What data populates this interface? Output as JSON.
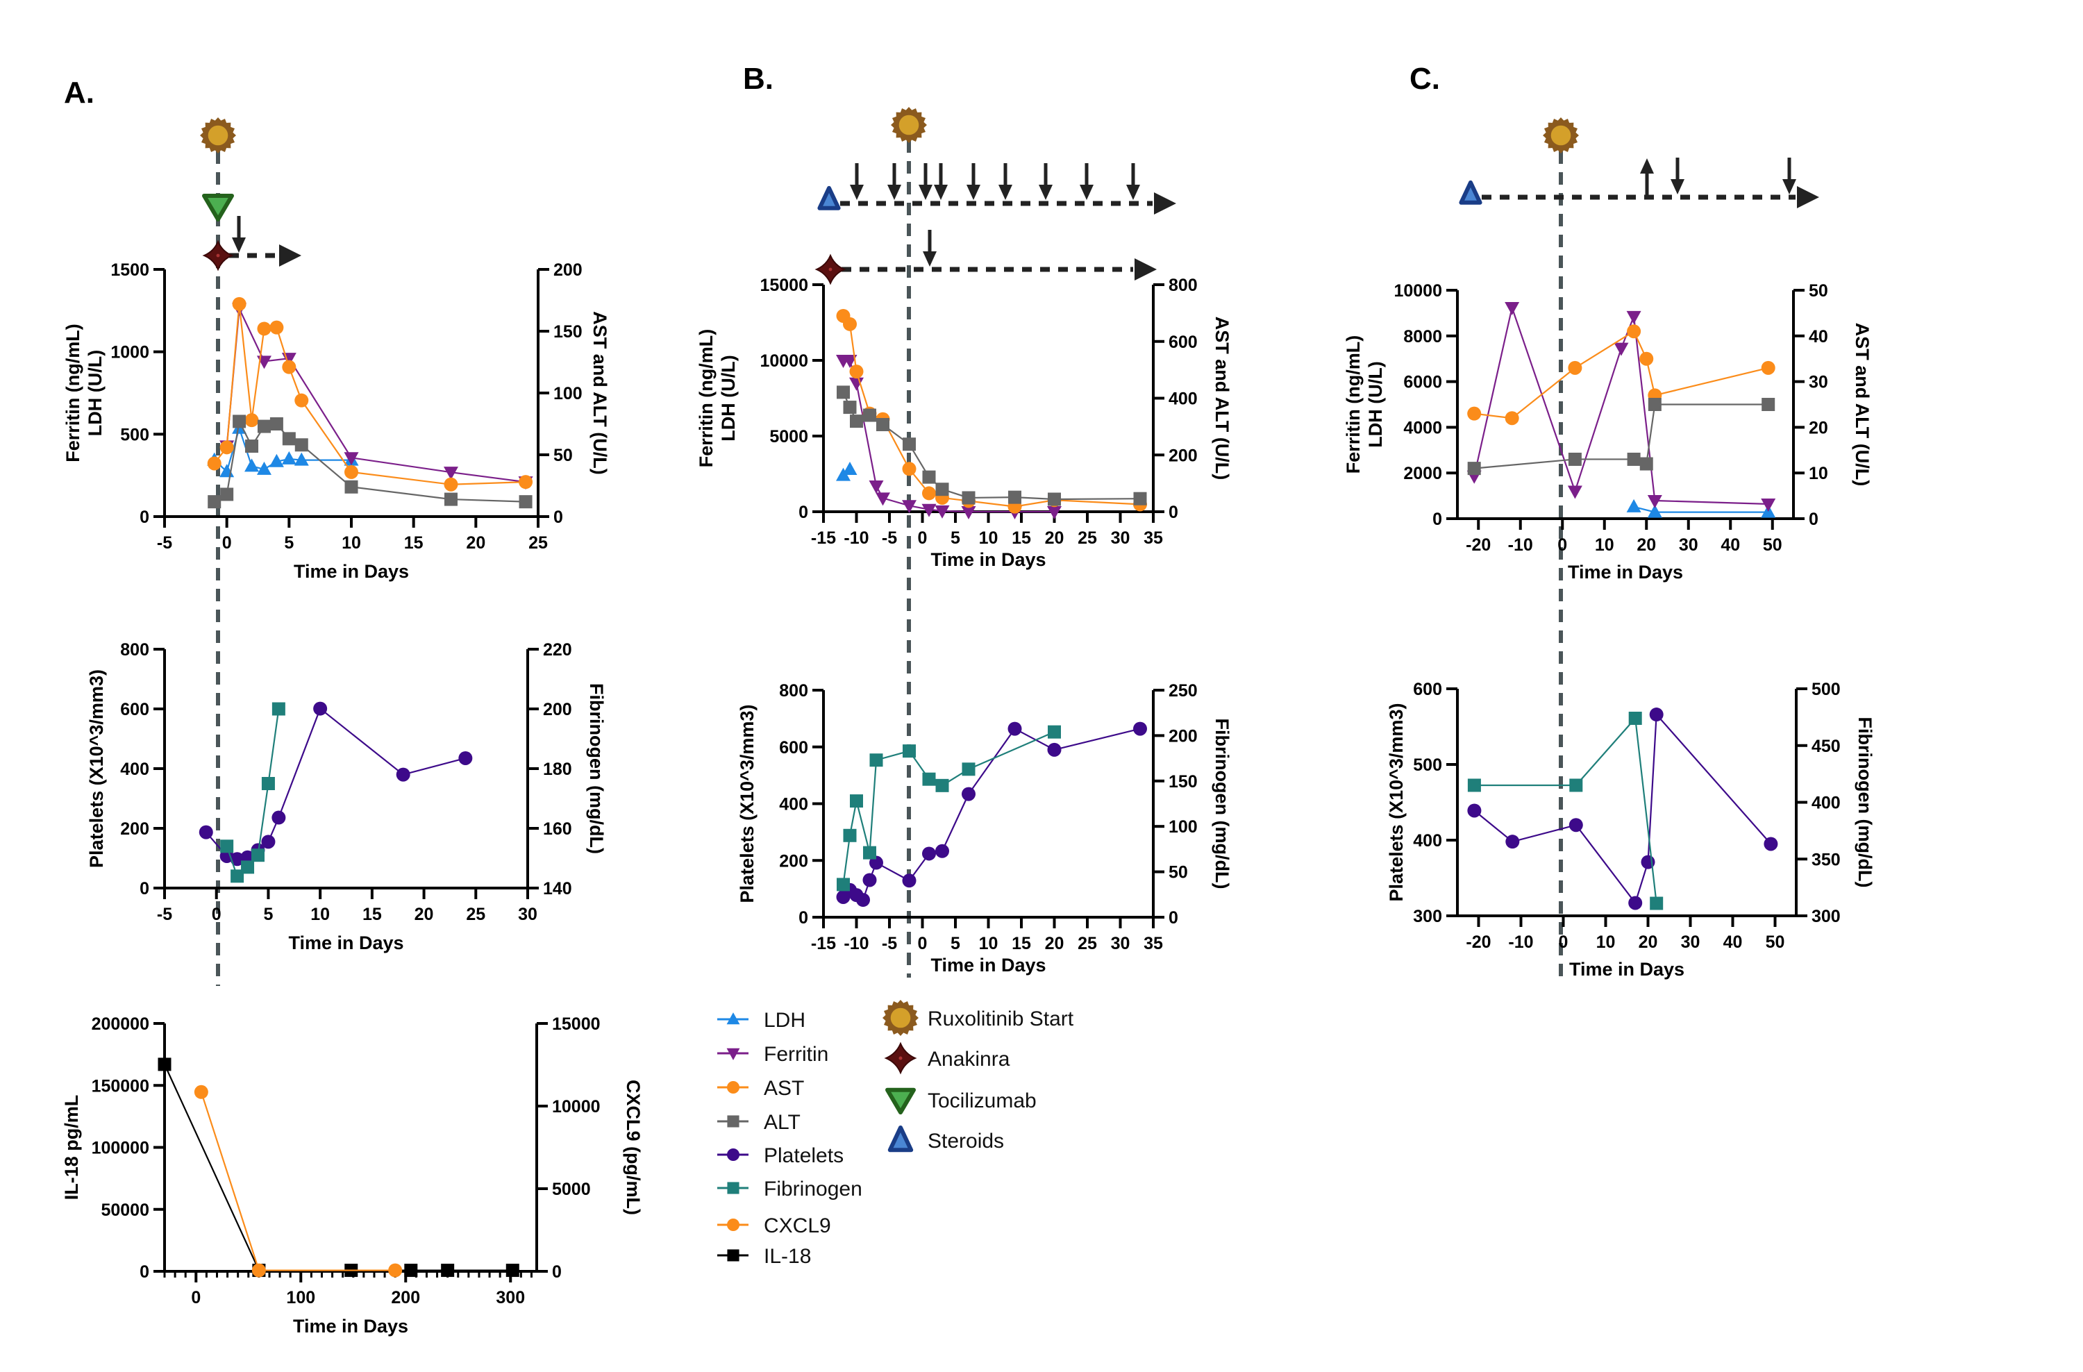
{
  "panels": [
    {
      "id": "A",
      "label": "A."
    },
    {
      "id": "B",
      "label": "B."
    },
    {
      "id": "C",
      "label": "C."
    }
  ],
  "series_styles": {
    "LDH": {
      "color": "#1e88e5",
      "marker": "triangle-up"
    },
    "Ferritin": {
      "color": "#7b1f8a",
      "marker": "triangle-down"
    },
    "AST": {
      "color": "#fb8c1a",
      "marker": "circle"
    },
    "ALT": {
      "color": "#666666",
      "marker": "square"
    },
    "Platelets": {
      "color": "#3d0a8a",
      "marker": "circle"
    },
    "Fibrinogen": {
      "color": "#1f7f7a",
      "marker": "square"
    },
    "CXCL9": {
      "color": "#fb8c1a",
      "marker": "circle"
    },
    "IL-18": {
      "color": "#000000",
      "marker": "square"
    }
  },
  "legend": {
    "series": [
      "LDH",
      "Ferritin",
      "AST",
      "ALT",
      "Platelets",
      "Fibrinogen",
      "CXCL9",
      "IL-18"
    ],
    "treatments": [
      {
        "name": "Ruxolitinib Start",
        "icon": "ruxolitinib-sun-icon",
        "color": "#d4a02a",
        "outline": "#8b5a1e"
      },
      {
        "name": "Anakinra",
        "icon": "anakinra-star-icon",
        "color": "#5a1010",
        "outline": "#3a0808"
      },
      {
        "name": "Tocilizumab",
        "icon": "tocilizumab-triangle-icon",
        "color": "#4caf50",
        "outline": "#24621c"
      },
      {
        "name": "Steroids",
        "icon": "steroids-triangle-icon",
        "color": "#4a86d4",
        "outline": "#1a3d87"
      }
    ]
  },
  "timelines": {
    "A": {
      "ruxolitinib_start_day": -1,
      "tocilizumab_day": -1,
      "anakinra": {
        "start_day": -1,
        "dose_changes": [
          {
            "direction": "down"
          }
        ]
      }
    },
    "B": {
      "ruxolitinib_start_day": -1,
      "steroids": {
        "dose_changes": [
          {
            "direction": "down"
          },
          {
            "direction": "down"
          },
          {
            "direction": "down"
          },
          {
            "direction": "down"
          },
          {
            "direction": "down"
          },
          {
            "direction": "down"
          },
          {
            "direction": "down"
          },
          {
            "direction": "down"
          },
          {
            "direction": "down"
          }
        ]
      },
      "anakinra": {
        "dose_changes": [
          {
            "direction": "down"
          }
        ]
      }
    },
    "C": {
      "ruxolitinib_start_day": 0,
      "steroids": {
        "dose_changes": [
          {
            "direction": "up"
          },
          {
            "direction": "down"
          },
          {
            "direction": "down"
          }
        ]
      }
    }
  },
  "chart_data": [
    {
      "id": "A-top",
      "panel": "A",
      "type": "line",
      "xlabel": "Time in Days",
      "ylabel": "Ferritin (ng/mL)\nLDH (U/L)",
      "y2label": "AST and ALT (U/L)",
      "xlim": [
        -5,
        25
      ],
      "xticks": [
        -5,
        0,
        5,
        10,
        15,
        20,
        25
      ],
      "xtick_labels": [
        "-5",
        "0",
        "5",
        "10",
        "15",
        "20",
        "25"
      ],
      "ylim": [
        0,
        1500
      ],
      "yticks": [
        0,
        500,
        1000,
        1500
      ],
      "ytick_labels": [
        "0",
        "500",
        "1000",
        "1500"
      ],
      "y2lim": [
        0,
        200
      ],
      "y2ticks": [
        0,
        50,
        100,
        150,
        200
      ],
      "y2tick_labels": [
        "0",
        "50",
        "100",
        "150",
        "200"
      ],
      "grid": false,
      "series": [
        {
          "name": "LDH",
          "axis": "left",
          "x": [
            -1,
            0,
            1,
            2,
            3,
            4,
            5,
            6,
            10
          ],
          "y": [
            343,
            273,
            536,
            306,
            287,
            334,
            350,
            343,
            343
          ]
        },
        {
          "name": "Ferritin",
          "axis": "left",
          "x": [
            0,
            1,
            3,
            5,
            10,
            18,
            24
          ],
          "y": [
            428,
            1262,
            942,
            960,
            357,
            269,
            210
          ]
        },
        {
          "name": "AST",
          "axis": "right",
          "x": [
            -1,
            0,
            1,
            2,
            3,
            4,
            5,
            6,
            10,
            18,
            24
          ],
          "y": [
            43,
            56,
            172,
            78,
            152,
            153,
            121,
            94,
            36,
            26,
            28
          ]
        },
        {
          "name": "ALT",
          "axis": "right",
          "x": [
            -1,
            0,
            1,
            2,
            3,
            4,
            5,
            6,
            10,
            18,
            24
          ],
          "y": [
            12,
            18,
            77,
            57,
            73,
            75,
            63,
            58,
            24,
            14,
            12
          ]
        }
      ]
    },
    {
      "id": "A-mid",
      "panel": "A",
      "type": "line",
      "xlabel": "Time in Days",
      "ylabel": "Platelets (X10^3/mm3)",
      "y2label": "Fibrinogen (mg/dL)",
      "xlim": [
        -5,
        30
      ],
      "xticks": [
        -5,
        0,
        5,
        10,
        15,
        20,
        25,
        30
      ],
      "xtick_labels": [
        "-5",
        "0",
        "5",
        "10",
        "15",
        "20",
        "25",
        "30"
      ],
      "ylim": [
        0,
        800
      ],
      "yticks": [
        0,
        200,
        400,
        600,
        800
      ],
      "ytick_labels": [
        "0",
        "200",
        "400",
        "600",
        "800"
      ],
      "y2lim": [
        140,
        220
      ],
      "y2ticks": [
        140,
        160,
        180,
        200,
        220
      ],
      "y2tick_labels": [
        "140",
        "160",
        "180",
        "200",
        "220"
      ],
      "grid": false,
      "series": [
        {
          "name": "Platelets",
          "axis": "left",
          "x": [
            -1,
            1,
            2,
            3,
            4,
            5,
            6,
            10,
            18,
            24
          ],
          "y": [
            187,
            107,
            97,
            103,
            127,
            155,
            236,
            601,
            380,
            435
          ]
        },
        {
          "name": "Fibrinogen",
          "axis": "right",
          "x": [
            1,
            2,
            3,
            4,
            5,
            6
          ],
          "y": [
            154,
            144,
            147,
            151,
            175,
            200
          ]
        }
      ]
    },
    {
      "id": "A-bottom",
      "panel": "A",
      "type": "line",
      "xlabel": "Time in Days",
      "ylabel": "IL-18 pg/mL",
      "y2label": "CXCL9 (pg/mL)",
      "xlim": [
        -30,
        325
      ],
      "xticks": [
        0,
        100,
        200,
        300
      ],
      "xtick_labels": [
        "0",
        "100",
        "200",
        "300"
      ],
      "xminor": 10,
      "ylim": [
        0,
        200000
      ],
      "yticks": [
        0,
        50000,
        100000,
        150000,
        200000
      ],
      "ytick_labels": [
        "0",
        "50000",
        "100000",
        "150000",
        "200000"
      ],
      "y2lim": [
        0,
        15000
      ],
      "y2ticks": [
        0,
        5000,
        10000,
        15000
      ],
      "y2tick_labels": [
        "0",
        "5000",
        "10000",
        "15000"
      ],
      "grid": false,
      "series": [
        {
          "name": "IL-18",
          "axis": "left",
          "x": [
            -30,
            60,
            148,
            205,
            240,
            302
          ],
          "y": [
            167000,
            800,
            800,
            800,
            800,
            800
          ]
        },
        {
          "name": "CXCL9",
          "axis": "right",
          "x": [
            5,
            60,
            190
          ],
          "y": [
            10850,
            60,
            60
          ]
        }
      ]
    },
    {
      "id": "B-top",
      "panel": "B",
      "type": "line",
      "xlabel": "Time in Days",
      "ylabel": "Ferritin (ng/mL)\nLDH (U/L)",
      "y2label": "AST and ALT (U/L)",
      "xlim": [
        -15,
        35
      ],
      "xticks": [
        -15,
        -10,
        -5,
        0,
        5,
        10,
        15,
        20,
        25,
        30,
        35
      ],
      "xtick_labels": [
        "-15",
        "-10",
        "-5",
        "0",
        "5",
        "10",
        "15",
        "20",
        "25",
        "30",
        "35"
      ],
      "ylim": [
        0,
        15000
      ],
      "yticks": [
        0,
        5000,
        10000,
        15000
      ],
      "ytick_labels": [
        "0",
        "5000",
        "10000",
        "15000"
      ],
      "y2lim": [
        0,
        800
      ],
      "y2ticks": [
        0,
        200,
        400,
        600,
        800
      ],
      "y2tick_labels": [
        "0",
        "200",
        "400",
        "600",
        "800"
      ],
      "grid": false,
      "series": [
        {
          "name": "LDH",
          "axis": "left",
          "x": [
            -12,
            -11
          ],
          "y": [
            2400,
            2800
          ]
        },
        {
          "name": "Ferritin",
          "axis": "left",
          "x": [
            -12,
            -11,
            -10,
            -7,
            -6,
            -2,
            1,
            3,
            7,
            14,
            20
          ],
          "y": [
            10000,
            10000,
            8500,
            1700,
            900,
            400,
            150,
            50,
            0,
            0,
            0
          ]
        },
        {
          "name": "AST",
          "axis": "right",
          "x": [
            -12,
            -11,
            -10,
            -8,
            -6,
            -2,
            1,
            3,
            7,
            14,
            20,
            33
          ],
          "y": [
            690,
            661,
            494,
            346,
            326,
            151,
            65,
            49,
            38,
            18,
            41,
            26
          ]
        },
        {
          "name": "ALT",
          "axis": "right",
          "x": [
            -12,
            -11,
            -10,
            -8,
            -6,
            -2,
            1,
            3,
            7,
            14,
            20,
            33
          ],
          "y": [
            421,
            368,
            319,
            340,
            307,
            238,
            122,
            79,
            49,
            51,
            44,
            46
          ]
        }
      ]
    },
    {
      "id": "B-bottom",
      "panel": "B",
      "type": "line",
      "xlabel": "Time in Days",
      "ylabel": "Platelets (X10^3/mm3)",
      "y2label": "Fibrinogen (mg/dL)",
      "xlim": [
        -15,
        35
      ],
      "xticks": [
        -15,
        -10,
        -5,
        0,
        5,
        10,
        15,
        20,
        25,
        30,
        35
      ],
      "xtick_labels": [
        "-15",
        "-10",
        "-5",
        "0",
        "5",
        "10",
        "15",
        "20",
        "25",
        "30",
        "35"
      ],
      "ylim": [
        0,
        800
      ],
      "yticks": [
        0,
        200,
        400,
        600,
        800
      ],
      "ytick_labels": [
        "0",
        "200",
        "400",
        "600",
        "800"
      ],
      "y2lim": [
        0,
        250
      ],
      "y2ticks": [
        0,
        50,
        100,
        150,
        200,
        250
      ],
      "y2tick_labels": [
        "0",
        "50",
        "100",
        "150",
        "200",
        "250"
      ],
      "grid": false,
      "series": [
        {
          "name": "Platelets",
          "axis": "left",
          "x": [
            -12,
            -11,
            -10,
            -9,
            -8,
            -7,
            -2,
            1,
            3,
            7,
            14,
            20,
            33
          ],
          "y": [
            71,
            96,
            78,
            61,
            131,
            192,
            129,
            224,
            233,
            434,
            664,
            590,
            664
          ]
        },
        {
          "name": "Fibrinogen",
          "axis": "right",
          "x": [
            -12,
            -11,
            -10,
            -8,
            -7,
            -2,
            1,
            3,
            7,
            20
          ],
          "y": [
            36,
            90,
            128,
            71,
            173,
            183,
            152,
            145,
            163,
            204
          ]
        }
      ]
    },
    {
      "id": "C-top",
      "panel": "C",
      "type": "line",
      "xlabel": "Time in Days",
      "ylabel": "Ferritin (ng/mL)\nLDH (U/L)",
      "y2label": "AST and ALT (U/L)",
      "xlim": [
        -25,
        55
      ],
      "xticks": [
        -20,
        -10,
        0,
        10,
        20,
        30,
        40,
        50
      ],
      "xtick_labels": [
        "-20",
        "-10",
        "0",
        "10",
        "20",
        "30",
        "40",
        "50"
      ],
      "ylim": [
        0,
        10000
      ],
      "yticks": [
        0,
        2000,
        4000,
        6000,
        8000,
        10000
      ],
      "ytick_labels": [
        "0",
        "2000",
        "4000",
        "6000",
        "8000",
        "10000"
      ],
      "y2lim": [
        0,
        50
      ],
      "y2ticks": [
        0,
        10,
        20,
        30,
        40,
        50
      ],
      "y2tick_labels": [
        "0",
        "10",
        "20",
        "30",
        "40",
        "50"
      ],
      "grid": false,
      "series": [
        {
          "name": "LDH",
          "axis": "left",
          "x": [
            17,
            22,
            49
          ],
          "y": [
            520,
            285,
            285
          ]
        },
        {
          "name": "Ferritin",
          "axis": "left",
          "x": [
            -21,
            -12,
            3,
            14,
            17,
            22,
            49
          ],
          "y": [
            1860,
            9240,
            1200,
            7460,
            8850,
            790,
            640
          ]
        },
        {
          "name": "AST",
          "axis": "right",
          "x": [
            -21,
            -12,
            3,
            17,
            20,
            22,
            49
          ],
          "y": [
            23,
            22,
            33,
            41,
            35,
            27,
            33
          ]
        },
        {
          "name": "ALT",
          "axis": "right",
          "x": [
            -21,
            3,
            17,
            20,
            22,
            49
          ],
          "y": [
            11,
            13,
            13,
            12,
            25,
            25
          ]
        }
      ]
    },
    {
      "id": "C-bottom",
      "panel": "C",
      "type": "line",
      "xlabel": "Time in Days",
      "ylabel": "Platelets (X10^3/mm3)",
      "y2label": "Fibrinogen (mg/dL)",
      "xlim": [
        -25,
        55
      ],
      "xticks": [
        -20,
        -10,
        0,
        10,
        20,
        30,
        40,
        50
      ],
      "xtick_labels": [
        "-20",
        "-10",
        "0",
        "10",
        "20",
        "30",
        "40",
        "50"
      ],
      "ylim": [
        300,
        600
      ],
      "yticks": [
        300,
        400,
        500,
        600
      ],
      "ytick_labels": [
        "300",
        "400",
        "500",
        "600"
      ],
      "y2lim": [
        300,
        500
      ],
      "y2ticks": [
        300,
        350,
        400,
        450,
        500
      ],
      "y2tick_labels": [
        "300",
        "350",
        "400",
        "450",
        "500"
      ],
      "grid": false,
      "series": [
        {
          "name": "Platelets",
          "axis": "left",
          "x": [
            -21,
            -12,
            3,
            17,
            20,
            22,
            49
          ],
          "y": [
            439,
            398,
            420,
            317,
            371,
            566,
            395
          ]
        },
        {
          "name": "Fibrinogen",
          "axis": "right",
          "x": [
            -21,
            3,
            17,
            22
          ],
          "y": [
            415,
            415,
            474,
            311
          ]
        }
      ]
    }
  ]
}
